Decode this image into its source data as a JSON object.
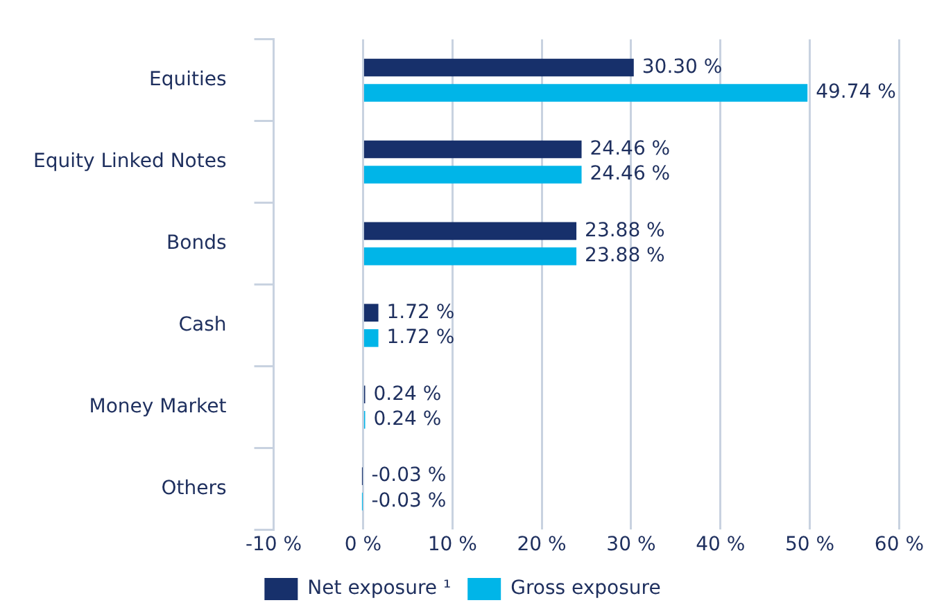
{
  "chart_data": {
    "type": "bar",
    "orientation": "horizontal",
    "categories": [
      "Equities",
      "Equity Linked Notes",
      "Bonds",
      "Cash",
      "Money Market",
      "Others"
    ],
    "series": [
      {
        "name": "Net exposure ¹",
        "color": "#17306b",
        "values": [
          30.3,
          24.46,
          23.88,
          1.72,
          0.24,
          -0.03
        ],
        "value_labels": [
          "30.30 %",
          "24.46 %",
          "23.88 %",
          "1.72 %",
          "0.24 %",
          "-0.03 %"
        ]
      },
      {
        "name": "Gross exposure",
        "color": "#00b5e8",
        "values": [
          49.74,
          24.46,
          23.88,
          1.72,
          0.24,
          -0.03
        ],
        "value_labels": [
          "49.74 %",
          "24.46 %",
          "23.88 %",
          "1.72 %",
          "0.24 %",
          "-0.03 %"
        ]
      }
    ],
    "xlim": [
      -10,
      60
    ],
    "xticks": [
      {
        "value": -10,
        "label": "-10 %"
      },
      {
        "value": 0,
        "label": "0 %"
      },
      {
        "value": 10,
        "label": "10 %"
      },
      {
        "value": 20,
        "label": "20 %"
      },
      {
        "value": 30,
        "label": "30 %"
      },
      {
        "value": 40,
        "label": "40 %"
      },
      {
        "value": 50,
        "label": "50 %"
      },
      {
        "value": 60,
        "label": "60 %"
      }
    ],
    "grid": "x",
    "legend": "bottom"
  }
}
